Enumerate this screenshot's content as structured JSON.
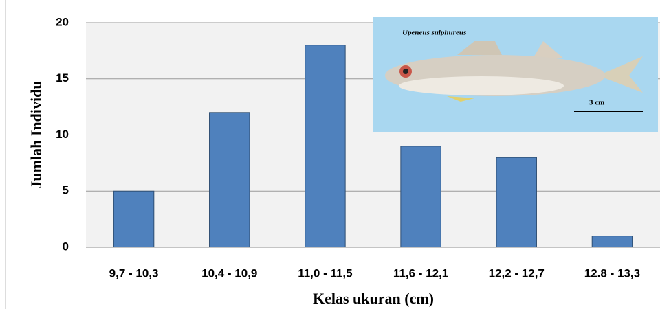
{
  "chart_data": {
    "type": "bar",
    "x_label": "Kelas ukuran (cm)",
    "y_label": "Jumlah Individu",
    "categories": [
      "9,7 - 10,3",
      "10,4 - 10,9",
      "11,0 - 11,5",
      "11,6 - 12,1",
      "12,2 - 12,7",
      "12.8 - 13,3"
    ],
    "values": [
      5,
      12,
      18,
      9,
      8,
      1
    ],
    "color": "#4f81bd",
    "ylim": [
      0,
      20
    ],
    "yticks": [
      0,
      5,
      10,
      15,
      20
    ],
    "grid": true,
    "image_labels": [
      "Upeneus sulphureus",
      "3 cm"
    ]
  }
}
